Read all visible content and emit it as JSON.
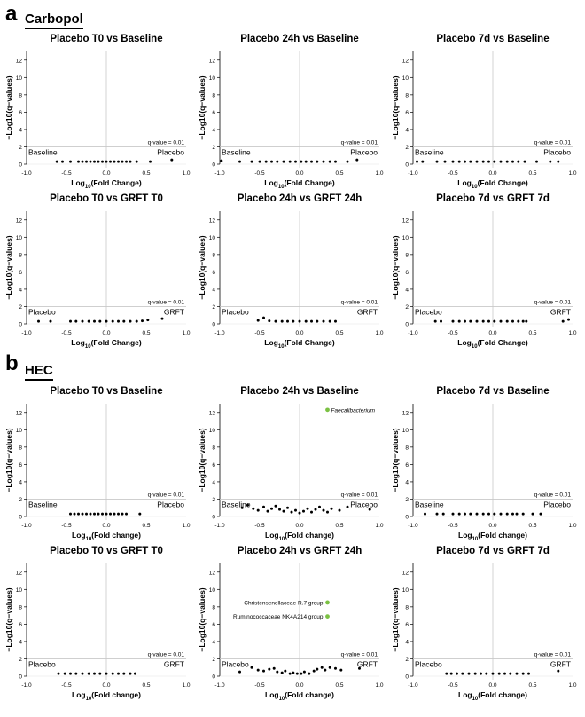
{
  "panels": [
    {
      "letter": "a",
      "group": "Carbopol"
    },
    {
      "letter": "b",
      "group": "HEC"
    }
  ],
  "chart_data": [
    {
      "type": "scatter",
      "title": "Placebo T0 vs Baseline",
      "xlabel_main": "Log",
      "xlabel_sub": "10",
      "xlabel_rest": "(Fold Change)",
      "ylabel": "−Log10(q−values)",
      "xlim": [
        -1,
        1
      ],
      "ylim": [
        0,
        13
      ],
      "threshold": 2,
      "threshold_label": "q-value = 0.01",
      "left_label": "Baseline",
      "right_label": "Placebo",
      "show_left_yticks": false,
      "points": [
        [
          -0.62,
          0.3
        ],
        [
          -0.55,
          0.3
        ],
        [
          -0.45,
          0.3
        ],
        [
          -0.35,
          0.3
        ],
        [
          -0.3,
          0.3
        ],
        [
          -0.25,
          0.3
        ],
        [
          -0.2,
          0.3
        ],
        [
          -0.15,
          0.3
        ],
        [
          -0.1,
          0.3
        ],
        [
          -0.05,
          0.3
        ],
        [
          0,
          0.3
        ],
        [
          0.05,
          0.3
        ],
        [
          0.1,
          0.3
        ],
        [
          0.15,
          0.3
        ],
        [
          0.2,
          0.3
        ],
        [
          0.25,
          0.3
        ],
        [
          0.3,
          0.3
        ],
        [
          0.38,
          0.3
        ],
        [
          0.55,
          0.3
        ],
        [
          0.82,
          0.5
        ]
      ],
      "highlights": []
    },
    {
      "type": "scatter",
      "title": "Placebo 24h vs Baseline",
      "xlabel_main": "Log",
      "xlabel_sub": "10",
      "xlabel_rest": "(Fold Change)",
      "ylabel": "−Log10(q−values)",
      "xlim": [
        -1,
        1
      ],
      "ylim": [
        0,
        13
      ],
      "threshold": 2,
      "threshold_label": "q-value = 0.01",
      "left_label": "Baseline",
      "right_label": "Placebo",
      "show_left_yticks": true,
      "points": [
        [
          -0.98,
          0.4
        ],
        [
          -0.75,
          0.3
        ],
        [
          -0.6,
          0.3
        ],
        [
          -0.5,
          0.3
        ],
        [
          -0.42,
          0.3
        ],
        [
          -0.35,
          0.3
        ],
        [
          -0.28,
          0.3
        ],
        [
          -0.2,
          0.3
        ],
        [
          -0.12,
          0.3
        ],
        [
          -0.05,
          0.3
        ],
        [
          0.02,
          0.3
        ],
        [
          0.08,
          0.3
        ],
        [
          0.15,
          0.3
        ],
        [
          0.22,
          0.3
        ],
        [
          0.3,
          0.3
        ],
        [
          0.38,
          0.3
        ],
        [
          0.45,
          0.3
        ],
        [
          0.6,
          0.3
        ],
        [
          0.72,
          0.5
        ]
      ],
      "highlights": []
    },
    {
      "type": "scatter",
      "title": "Placebo 7d vs Baseline",
      "xlabel_main": "Log",
      "xlabel_sub": "10",
      "xlabel_rest": "(Fold Change)",
      "ylabel": "−Log10(q−values)",
      "xlim": [
        -1,
        1
      ],
      "ylim": [
        0,
        13
      ],
      "threshold": 2,
      "threshold_label": "q-value = 0.01",
      "left_label": "Baseline",
      "right_label": "Placebo",
      "show_left_yticks": true,
      "points": [
        [
          -0.95,
          0.3
        ],
        [
          -0.88,
          0.3
        ],
        [
          -0.7,
          0.3
        ],
        [
          -0.6,
          0.3
        ],
        [
          -0.5,
          0.3
        ],
        [
          -0.42,
          0.3
        ],
        [
          -0.35,
          0.3
        ],
        [
          -0.28,
          0.3
        ],
        [
          -0.2,
          0.3
        ],
        [
          -0.12,
          0.3
        ],
        [
          -0.05,
          0.3
        ],
        [
          0.02,
          0.3
        ],
        [
          0.1,
          0.3
        ],
        [
          0.18,
          0.3
        ],
        [
          0.25,
          0.3
        ],
        [
          0.32,
          0.3
        ],
        [
          0.4,
          0.3
        ],
        [
          0.55,
          0.3
        ],
        [
          0.72,
          0.3
        ],
        [
          0.82,
          0.3
        ]
      ],
      "highlights": []
    },
    {
      "type": "scatter",
      "title": "Placebo T0 vs GRFT T0",
      "xlabel_main": "Log",
      "xlabel_sub": "10",
      "xlabel_rest": "(Fold Change)",
      "ylabel": "−Log10(q−values)",
      "xlim": [
        -1,
        1
      ],
      "ylim": [
        0,
        13
      ],
      "threshold": 2,
      "threshold_label": "q-value = 0.01",
      "left_label": "Placebo",
      "right_label": "GRFT",
      "show_left_yticks": true,
      "points": [
        [
          -0.85,
          0.3
        ],
        [
          -0.7,
          0.3
        ],
        [
          -0.45,
          0.3
        ],
        [
          -0.38,
          0.3
        ],
        [
          -0.3,
          0.3
        ],
        [
          -0.22,
          0.3
        ],
        [
          -0.15,
          0.3
        ],
        [
          -0.08,
          0.3
        ],
        [
          0,
          0.3
        ],
        [
          0.08,
          0.3
        ],
        [
          0.15,
          0.3
        ],
        [
          0.22,
          0.3
        ],
        [
          0.3,
          0.3
        ],
        [
          0.38,
          0.3
        ],
        [
          0.45,
          0.35
        ],
        [
          0.52,
          0.45
        ],
        [
          0.7,
          0.6
        ]
      ],
      "highlights": []
    },
    {
      "type": "scatter",
      "title": "Placebo 24h vs GRFT 24h",
      "xlabel_main": "Log",
      "xlabel_sub": "10",
      "xlabel_rest": "(Fold Change)",
      "ylabel": "−Log10(q−values)",
      "xlim": [
        -1,
        1
      ],
      "ylim": [
        0,
        13
      ],
      "threshold": 2,
      "threshold_label": "q-value = 0.01",
      "left_label": "Placebo",
      "right_label": "GRFT",
      "show_left_yticks": true,
      "points": [
        [
          -0.52,
          0.4
        ],
        [
          -0.45,
          0.7
        ],
        [
          -0.38,
          0.35
        ],
        [
          -0.3,
          0.3
        ],
        [
          -0.22,
          0.3
        ],
        [
          -0.15,
          0.3
        ],
        [
          -0.08,
          0.3
        ],
        [
          0,
          0.3
        ],
        [
          0.08,
          0.3
        ],
        [
          0.15,
          0.3
        ],
        [
          0.22,
          0.3
        ],
        [
          0.3,
          0.3
        ],
        [
          0.38,
          0.3
        ],
        [
          0.45,
          0.3
        ]
      ],
      "highlights": []
    },
    {
      "type": "scatter",
      "title": "Placebo 7d vs GRFT 7d",
      "xlabel_main": "Log",
      "xlabel_sub": "10",
      "xlabel_rest": "(Fold Change)",
      "ylabel": "−Log10(q−values)",
      "xlim": [
        -1,
        1
      ],
      "ylim": [
        0,
        13
      ],
      "threshold": 2,
      "threshold_label": "q-value = 0.01",
      "left_label": "Placebo",
      "right_label": "GRFT",
      "show_left_yticks": true,
      "points": [
        [
          -0.72,
          0.3
        ],
        [
          -0.65,
          0.3
        ],
        [
          -0.5,
          0.3
        ],
        [
          -0.42,
          0.3
        ],
        [
          -0.35,
          0.3
        ],
        [
          -0.28,
          0.3
        ],
        [
          -0.2,
          0.3
        ],
        [
          -0.12,
          0.3
        ],
        [
          -0.05,
          0.3
        ],
        [
          0.02,
          0.3
        ],
        [
          0.1,
          0.3
        ],
        [
          0.18,
          0.3
        ],
        [
          0.25,
          0.3
        ],
        [
          0.32,
          0.3
        ],
        [
          0.38,
          0.3
        ],
        [
          0.42,
          0.3
        ],
        [
          0.88,
          0.3
        ],
        [
          0.95,
          0.5
        ]
      ],
      "highlights": []
    },
    {
      "type": "scatter",
      "title": "Placebo T0 vs Baseline",
      "xlabel_main": "Log",
      "xlabel_sub": "10",
      "xlabel_rest": "(Fold change)",
      "ylabel": "−Log10(q−values)",
      "xlim": [
        -1,
        1
      ],
      "ylim": [
        0,
        13
      ],
      "threshold": 2,
      "threshold_label": "q-value = 0.01",
      "left_label": "Baseline",
      "right_label": "Placebo",
      "show_left_yticks": false,
      "points": [
        [
          -0.45,
          0.3
        ],
        [
          -0.4,
          0.3
        ],
        [
          -0.35,
          0.3
        ],
        [
          -0.3,
          0.3
        ],
        [
          -0.25,
          0.3
        ],
        [
          -0.2,
          0.3
        ],
        [
          -0.15,
          0.3
        ],
        [
          -0.1,
          0.3
        ],
        [
          -0.05,
          0.3
        ],
        [
          0,
          0.3
        ],
        [
          0.05,
          0.3
        ],
        [
          0.1,
          0.3
        ],
        [
          0.15,
          0.3
        ],
        [
          0.2,
          0.3
        ],
        [
          0.25,
          0.3
        ],
        [
          0.42,
          0.3
        ]
      ],
      "highlights": []
    },
    {
      "type": "scatter",
      "title": "Placebo 24h vs Baseline",
      "xlabel_main": "Log",
      "xlabel_sub": "10",
      "xlabel_rest": "(Fold change)",
      "ylabel": "−Log10(q−values)",
      "xlim": [
        -1,
        1
      ],
      "ylim": [
        0,
        13
      ],
      "threshold": 2,
      "threshold_label": "q-value = 0.01",
      "left_label": "Baseline",
      "right_label": "Placebo",
      "show_left_yticks": true,
      "points": [
        [
          -0.72,
          1.0
        ],
        [
          -0.65,
          1.3
        ],
        [
          -0.58,
          0.9
        ],
        [
          -0.52,
          0.7
        ],
        [
          -0.45,
          1.1
        ],
        [
          -0.4,
          0.6
        ],
        [
          -0.35,
          0.9
        ],
        [
          -0.3,
          1.2
        ],
        [
          -0.25,
          0.8
        ],
        [
          -0.2,
          0.6
        ],
        [
          -0.15,
          1.0
        ],
        [
          -0.1,
          0.5
        ],
        [
          -0.05,
          0.7
        ],
        [
          0,
          0.4
        ],
        [
          0.05,
          0.6
        ],
        [
          0.1,
          0.9
        ],
        [
          0.15,
          0.5
        ],
        [
          0.2,
          0.8
        ],
        [
          0.25,
          1.1
        ],
        [
          0.3,
          0.7
        ],
        [
          0.35,
          0.5
        ],
        [
          0.4,
          0.9
        ],
        [
          0.5,
          0.7
        ],
        [
          0.6,
          1.1
        ],
        [
          0.88,
          0.8
        ]
      ],
      "highlights": [
        {
          "x": 0.35,
          "y": 12.3,
          "label": "Faecalibacterium",
          "italic": true
        }
      ]
    },
    {
      "type": "scatter",
      "title": "Placebo 7d vs Baseline",
      "xlabel_main": "Log",
      "xlabel_sub": "10",
      "xlabel_rest": "(Fold change)",
      "ylabel": "−Log10(q−values)",
      "xlim": [
        -1,
        1
      ],
      "ylim": [
        0,
        13
      ],
      "threshold": 2,
      "threshold_label": "q-value = 0.01",
      "left_label": "Baseline",
      "right_label": "Placebo",
      "show_left_yticks": true,
      "points": [
        [
          -0.85,
          0.3
        ],
        [
          -0.7,
          0.3
        ],
        [
          -0.62,
          0.3
        ],
        [
          -0.5,
          0.3
        ],
        [
          -0.42,
          0.3
        ],
        [
          -0.35,
          0.3
        ],
        [
          -0.28,
          0.3
        ],
        [
          -0.2,
          0.3
        ],
        [
          -0.12,
          0.3
        ],
        [
          -0.05,
          0.3
        ],
        [
          0.02,
          0.3
        ],
        [
          0.1,
          0.3
        ],
        [
          0.18,
          0.3
        ],
        [
          0.25,
          0.3
        ],
        [
          0.3,
          0.3
        ],
        [
          0.38,
          0.3
        ],
        [
          0.5,
          0.3
        ],
        [
          0.6,
          0.3
        ]
      ],
      "highlights": []
    },
    {
      "type": "scatter",
      "title": "Placebo T0 vs GRFT T0",
      "xlabel_main": "Log",
      "xlabel_sub": "10",
      "xlabel_rest": "(Fold change)",
      "ylabel": "−Log10(q−values)",
      "xlim": [
        -1,
        1
      ],
      "ylim": [
        0,
        13
      ],
      "threshold": 2,
      "threshold_label": "q-value = 0.01",
      "left_label": "Placebo",
      "right_label": "GRFT",
      "show_left_yticks": false,
      "points": [
        [
          -0.6,
          0.3
        ],
        [
          -0.52,
          0.3
        ],
        [
          -0.45,
          0.3
        ],
        [
          -0.38,
          0.3
        ],
        [
          -0.3,
          0.3
        ],
        [
          -0.22,
          0.3
        ],
        [
          -0.15,
          0.3
        ],
        [
          -0.08,
          0.3
        ],
        [
          0,
          0.3
        ],
        [
          0.08,
          0.3
        ],
        [
          0.15,
          0.3
        ],
        [
          0.22,
          0.3
        ],
        [
          0.3,
          0.3
        ],
        [
          0.36,
          0.3
        ]
      ],
      "highlights": []
    },
    {
      "type": "scatter",
      "title": "Placebo 24h vs GRFT 24h",
      "xlabel_main": "Log",
      "xlabel_sub": "10",
      "xlabel_rest": "(Fold change)",
      "ylabel": "−Log10(q−values)",
      "xlim": [
        -1,
        1
      ],
      "ylim": [
        0,
        13
      ],
      "threshold": 2,
      "threshold_label": "q-value = 0.01",
      "left_label": "Placebo",
      "right_label": "GRFT",
      "show_left_yticks": true,
      "points": [
        [
          -0.75,
          0.5
        ],
        [
          -0.6,
          1.0
        ],
        [
          -0.52,
          0.7
        ],
        [
          -0.45,
          0.6
        ],
        [
          -0.38,
          0.8
        ],
        [
          -0.32,
          0.9
        ],
        [
          -0.28,
          0.5
        ],
        [
          -0.22,
          0.4
        ],
        [
          -0.18,
          0.6
        ],
        [
          -0.12,
          0.3
        ],
        [
          -0.08,
          0.4
        ],
        [
          -0.03,
          0.3
        ],
        [
          0.02,
          0.3
        ],
        [
          0.06,
          0.5
        ],
        [
          0.12,
          0.3
        ],
        [
          0.18,
          0.6
        ],
        [
          0.22,
          0.8
        ],
        [
          0.28,
          1.0
        ],
        [
          0.32,
          0.7
        ],
        [
          0.38,
          1.0
        ],
        [
          0.45,
          0.9
        ],
        [
          0.52,
          0.7
        ],
        [
          0.75,
          0.9
        ]
      ],
      "highlights": [
        {
          "x": 0.35,
          "y": 8.5,
          "label": "Christensenellaceae R.7 group",
          "italic": false
        },
        {
          "x": 0.35,
          "y": 6.9,
          "label": "Ruminococcaceae NK4A214 group",
          "italic": false
        }
      ]
    },
    {
      "type": "scatter",
      "title": "Placebo 7d vs GRFT 7d",
      "xlabel_main": "Log",
      "xlabel_sub": "10",
      "xlabel_rest": "(Fold change)",
      "ylabel": "−Log10(q−values)",
      "xlim": [
        -1,
        1
      ],
      "ylim": [
        0,
        13
      ],
      "threshold": 2,
      "threshold_label": "q-value = 0.01",
      "left_label": "Placebo",
      "right_label": "GRFT",
      "show_left_yticks": true,
      "points": [
        [
          -0.58,
          0.3
        ],
        [
          -0.52,
          0.3
        ],
        [
          -0.45,
          0.3
        ],
        [
          -0.38,
          0.3
        ],
        [
          -0.3,
          0.3
        ],
        [
          -0.22,
          0.3
        ],
        [
          -0.15,
          0.3
        ],
        [
          -0.08,
          0.3
        ],
        [
          0,
          0.3
        ],
        [
          0.08,
          0.3
        ],
        [
          0.15,
          0.3
        ],
        [
          0.22,
          0.3
        ],
        [
          0.3,
          0.3
        ],
        [
          0.38,
          0.3
        ],
        [
          0.45,
          0.3
        ],
        [
          0.82,
          0.6
        ]
      ],
      "highlights": []
    }
  ],
  "colors": {
    "points": "#000000",
    "highlight": "#7bc143",
    "line": "#c8c8c8",
    "axis": "#000000"
  }
}
